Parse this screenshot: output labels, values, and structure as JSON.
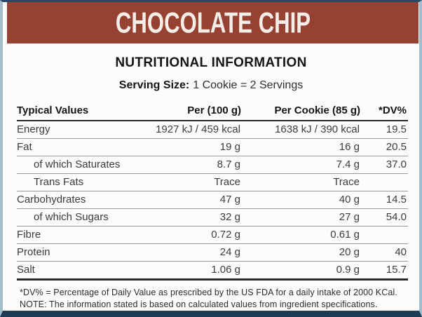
{
  "colors": {
    "header_bg": "#964233",
    "frame_top": "#2b4a63",
    "frame_side": "#a3bccd",
    "frame_bottom": "#1e3c55"
  },
  "header": {
    "title": "CHOCOLATE CHIP"
  },
  "section": {
    "title": "NUTRITIONAL INFORMATION"
  },
  "serving": {
    "label": "Serving Size:",
    "value": "1 Cookie = 2 Servings"
  },
  "table": {
    "headers": [
      "Typical Values",
      "Per (100 g)",
      "Per Cookie (85 g)",
      "*DV%"
    ],
    "rows": [
      {
        "label": "Energy",
        "per100": "1927 kJ / 459 kcal",
        "perCookie": "1638 kJ / 390 kcal",
        "dv": "19.5",
        "indent": false
      },
      {
        "label": "Fat",
        "per100": "19 g",
        "perCookie": "16 g",
        "dv": "20.5",
        "indent": false
      },
      {
        "label": "of which Saturates",
        "per100": "8.7 g",
        "perCookie": "7.4 g",
        "dv": "37.0",
        "indent": true
      },
      {
        "label": "Trans Fats",
        "per100": "Trace",
        "perCookie": "Trace",
        "dv": "",
        "indent": true
      },
      {
        "label": "Carbohydrates",
        "per100": "47 g",
        "perCookie": "40 g",
        "dv": "14.5",
        "indent": false
      },
      {
        "label": "of which Sugars",
        "per100": "32 g",
        "perCookie": "27 g",
        "dv": "54.0",
        "indent": true
      },
      {
        "label": "Fibre",
        "per100": "0.72 g",
        "perCookie": "0.61 g",
        "dv": "",
        "indent": false
      },
      {
        "label": "Protein",
        "per100": "24 g",
        "perCookie": "20 g",
        "dv": "40",
        "indent": false
      },
      {
        "label": "Salt",
        "per100": "1.06 g",
        "perCookie": "0.9 g",
        "dv": "15.7",
        "indent": false
      }
    ]
  },
  "footnotes": [
    "*DV% = Percentage of Daily Value as prescribed by the US FDA for a daily intake of 2000 KCal.",
    "NOTE: The information stated is based on calculated values from ingredient specifications."
  ]
}
